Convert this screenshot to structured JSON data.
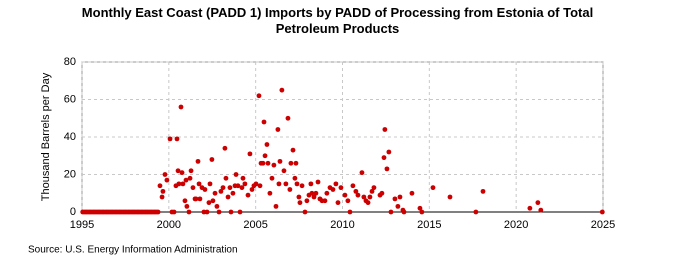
{
  "chart_data": {
    "type": "scatter",
    "title": "Monthly East Coast (PADD 1) Imports by PADD of Processing from Estonia of Total Petroleum Products",
    "ylabel": "Thousand Barrels per Day",
    "source": "Source: U.S. Energy Information Administration",
    "xlim": [
      1995,
      2025
    ],
    "xticks": [
      1995,
      2000,
      2005,
      2010,
      2015,
      2020,
      2025
    ],
    "ylim": [
      0,
      80
    ],
    "yticks": [
      0,
      20,
      40,
      60,
      80
    ],
    "grid": true,
    "series": [
      {
        "name": "Imports",
        "color": "#cc0000",
        "x": [
          1995.04,
          1995.13,
          1995.21,
          1995.29,
          1995.38,
          1995.46,
          1995.54,
          1995.63,
          1995.71,
          1995.79,
          1995.88,
          1995.96,
          1996.04,
          1996.13,
          1996.21,
          1996.29,
          1996.38,
          1996.46,
          1996.54,
          1996.63,
          1996.71,
          1996.79,
          1996.88,
          1996.96,
          1997.04,
          1997.13,
          1997.21,
          1997.29,
          1997.38,
          1997.46,
          1997.54,
          1997.63,
          1997.71,
          1997.79,
          1997.88,
          1997.96,
          1998.04,
          1998.13,
          1998.21,
          1998.29,
          1998.38,
          1998.46,
          1998.54,
          1998.63,
          1998.71,
          1998.79,
          1998.88,
          1998.96,
          1999.04,
          1999.13,
          1999.21,
          1999.29,
          1999.38,
          1999.49,
          1999.61,
          1999.66,
          1999.78,
          1999.89,
          2000.07,
          2000.18,
          2000.3,
          2000.41,
          2000.47,
          2000.53,
          2000.58,
          2000.7,
          2000.76,
          2000.81,
          2000.93,
          2000.99,
          2001.04,
          2001.16,
          2001.22,
          2001.28,
          2001.39,
          2001.51,
          2001.56,
          2001.68,
          2001.74,
          2001.79,
          2001.91,
          2002.02,
          2002.08,
          2002.2,
          2002.31,
          2002.37,
          2002.48,
          2002.54,
          2002.66,
          2002.77,
          2002.89,
          2003.0,
          2003.12,
          2003.23,
          2003.29,
          2003.41,
          2003.52,
          2003.58,
          2003.69,
          2003.81,
          2003.87,
          2003.98,
          2004.1,
          2004.21,
          2004.27,
          2004.38,
          2004.56,
          2004.67,
          2004.79,
          2004.9,
          2005.02,
          2005.19,
          2005.25,
          2005.31,
          2005.42,
          2005.48,
          2005.54,
          2005.65,
          2005.71,
          2005.82,
          2005.94,
          2006.05,
          2006.17,
          2006.28,
          2006.34,
          2006.4,
          2006.51,
          2006.63,
          2006.74,
          2006.86,
          2006.97,
          2007.03,
          2007.15,
          2007.26,
          2007.32,
          2007.38,
          2007.49,
          2007.55,
          2007.67,
          2007.84,
          2007.95,
          2008.07,
          2008.18,
          2008.24,
          2008.36,
          2008.47,
          2008.59,
          2008.7,
          2008.82,
          2008.99,
          2009.1,
          2009.28,
          2009.45,
          2009.62,
          2009.74,
          2009.91,
          2010.14,
          2010.31,
          2010.43,
          2010.6,
          2010.77,
          2010.89,
          2011.12,
          2011.23,
          2011.35,
          2011.47,
          2011.58,
          2011.7,
          2011.81,
          2012.16,
          2012.27,
          2012.39,
          2012.44,
          2012.56,
          2012.67,
          2012.79,
          2013.02,
          2013.19,
          2013.31,
          2013.48,
          2013.54,
          2014.0,
          2014.46,
          2014.57,
          2015.21,
          2016.19,
          2017.68,
          2018.09,
          2020.79,
          2021.25,
          2021.42,
          2024.96
        ],
        "values": [
          0,
          0,
          0,
          0,
          0,
          0,
          0,
          0,
          0,
          0,
          0,
          0,
          0,
          0,
          0,
          0,
          0,
          0,
          0,
          0,
          0,
          0,
          0,
          0,
          0,
          0,
          0,
          0,
          0,
          0,
          0,
          0,
          0,
          0,
          0,
          0,
          0,
          0,
          0,
          0,
          0,
          0,
          0,
          0,
          0,
          0,
          0,
          0,
          0,
          0,
          0,
          0,
          0,
          14,
          8,
          11,
          20,
          17,
          39,
          0,
          0,
          14,
          39,
          22,
          15,
          56,
          21,
          15,
          6,
          17,
          3,
          0,
          18,
          22,
          13,
          7,
          7,
          27,
          15,
          7,
          13,
          0,
          12,
          0,
          5,
          15,
          28,
          6,
          10,
          3,
          0,
          11,
          13,
          34,
          18,
          8,
          13,
          0,
          10,
          14,
          20,
          14,
          0,
          13,
          18,
          15,
          9,
          31,
          12,
          14,
          15,
          62,
          14,
          26,
          26,
          48,
          30,
          36,
          26,
          10,
          18,
          25,
          3,
          44,
          15,
          27,
          65,
          22,
          15,
          50,
          12,
          26,
          33,
          18,
          26,
          15,
          8,
          5,
          14,
          0,
          6,
          9,
          15,
          10,
          8,
          10,
          16,
          7,
          6,
          6,
          10,
          13,
          12,
          15,
          5,
          13,
          9,
          6,
          0,
          14,
          11,
          9,
          21,
          8,
          6,
          5,
          8,
          11,
          13,
          9,
          10,
          29,
          44,
          23,
          32,
          0,
          7,
          3,
          8,
          1,
          0,
          10,
          2,
          0,
          13,
          8,
          0,
          11,
          2,
          5,
          1,
          0
        ]
      }
    ]
  }
}
